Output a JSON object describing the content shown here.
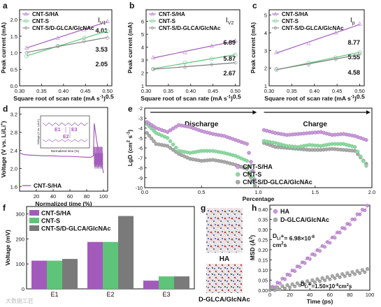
{
  "panels": {
    "a": {
      "label": "a",
      "xlabel": "Square root of scan rate (mA s",
      "xlabel_exp": "-1",
      "xlabel_tail": ")",
      "xlabel_exp2": "0.5",
      "ylabel": "Peak current (mA)",
      "corner_label": "I",
      "corner_sub": "V1",
      "yticks": [
        "0.0",
        "0.5",
        "1.0",
        "1.5",
        "2.0"
      ],
      "xticks": [
        "0.30",
        "0.35",
        "0.40",
        "0.45",
        "0.50"
      ],
      "slopes": [
        "4.01",
        "3.53",
        "2.05"
      ]
    },
    "b": {
      "label": "b",
      "xlabel": "Square root of scan rate (mA s",
      "xlabel_exp": "-1",
      "xlabel_tail": ")",
      "xlabel_exp2": "0.5",
      "ylabel": "Peak current (mA)",
      "corner_label": "I",
      "corner_sub": "V2",
      "yticks": [
        "1",
        "2",
        "3",
        "4",
        "5",
        "6"
      ],
      "xticks": [
        "0.30",
        "0.35",
        "0.40",
        "0.45",
        "0.50"
      ],
      "slopes": [
        "6.89",
        "5.87",
        "2.67"
      ]
    },
    "c": {
      "label": "c",
      "xlabel": "Square root of scan rate (mA s",
      "xlabel_exp": "-1",
      "xlabel_tail": ")",
      "xlabel_exp2": "0.5",
      "ylabel": "Peak current (mA)",
      "corner_label": "I",
      "corner_sub": "p",
      "yticks": [
        "1",
        "2",
        "3",
        "4",
        "5"
      ],
      "xticks": [
        "0.30",
        "0.35",
        "0.40",
        "0.45",
        "0.50"
      ],
      "slopes": [
        "8.77",
        "5.55",
        "4.58"
      ]
    },
    "d": {
      "label": "d",
      "xlabel": "Normalized time (%)",
      "ylabel": "Voltage (V vs. Li/Li",
      "ylabel_sup": "+",
      "ylabel_tail": ")",
      "yticks": [
        "1.6",
        "2.0",
        "2.4",
        "2.8",
        "3.2"
      ],
      "xticks": [
        "20",
        "40",
        "60",
        "80",
        "100"
      ],
      "legend": "CNT-S/HA",
      "inset_ylabel": "Voltage (V vs. Li/Li+)",
      "inset_xlabel": "Normalized time (%)",
      "inset_e1": "E1",
      "inset_e2": "E2",
      "inset_e3": "E3"
    },
    "e": {
      "label": "e",
      "xlabel": "Percentage",
      "ylabel": "LgD (cm",
      "ylabel_sup": "2",
      "ylabel_mid": " s",
      "ylabel_sup2": "-1",
      "ylabel_tail": ")",
      "yticks": [
        "-2",
        "-3",
        "-4",
        "-5",
        "-6",
        "-7",
        "-8",
        "-9",
        "-10"
      ],
      "xticks": [
        "0.0",
        "0.5",
        "1.0",
        "1.5",
        "2.0"
      ],
      "discharge": "Discharge",
      "charge": "Charge"
    },
    "f": {
      "label": "f",
      "ylabel": "Voltage (mV)",
      "yticks": [
        "0",
        "100",
        "200",
        "300"
      ],
      "categories": [
        "E1",
        "E2",
        "E3"
      ]
    },
    "g": {
      "label": "g",
      "caption_top": "HA",
      "caption_bottom": "D-GLCA/GlcNAc"
    },
    "h": {
      "label": "h",
      "xlabel": "Time (ps)",
      "ylabel": "MSD (Å",
      "ylabel_sup": "2",
      "ylabel_tail": ")",
      "yticks": [
        "0.00",
        "0.05",
        "0.10",
        "0.15",
        "0.20",
        "0.25",
        "0.30",
        "0.35",
        "0.40"
      ],
      "xticks": [
        "0",
        "20",
        "40",
        "60",
        "80",
        "100"
      ],
      "anno_ha": "D",
      "anno_ha_sub": "Li",
      "anno_ha_sup": "+",
      "anno_ha_val": "= 6.98×10",
      "anno_ha_exp": "-8",
      "anno_ha_unit": "cm",
      "anno_ha_unit2": "s",
      "anno_dg_val": "=1.50×10",
      "anno_dg_exp": "-8",
      "anno_dg_unit": "cm"
    }
  },
  "legend_abc": [
    "CNT-S/HA",
    "CNT-S",
    "CNT-S/D-GLCA/GlcNAc"
  ],
  "legend_h": [
    "HA",
    "D-GLCA/GlcNAc"
  ],
  "watermark": "大数据工匠",
  "colors": {
    "ha": "#a25bbb",
    "cnts": "#5ec47a",
    "dglca": "#7a7a7a",
    "ha_marker": "#c79bd6",
    "cnts_marker": "#8fd6a0",
    "dglca_marker": "#a9a9a9"
  },
  "chart_data": [
    {
      "id": "a",
      "type": "scatter",
      "title": "",
      "xlabel": "Square root of scan rate (mA s-1)0.5",
      "ylabel": "Peak current (mA)",
      "xlim": [
        0.3,
        0.51
      ],
      "ylim": [
        0.0,
        2.3
      ],
      "x": [
        0.316,
        0.387,
        0.447,
        0.5
      ],
      "series": [
        {
          "name": "CNT-S/HA",
          "values": [
            1.15,
            1.45,
            1.7,
            1.95
          ],
          "slope": "4.01"
        },
        {
          "name": "CNT-S",
          "values": [
            0.9,
            1.2,
            1.45,
            1.65
          ],
          "slope": "3.53"
        },
        {
          "name": "CNT-S/D-GLCA/GlcNAc",
          "values": [
            1.0,
            1.2,
            1.35,
            1.45
          ],
          "slope": "2.05"
        }
      ]
    },
    {
      "id": "b",
      "type": "scatter",
      "title": "",
      "xlabel": "Square root of scan rate (mA s-1)0.5",
      "ylabel": "Peak current (mA)",
      "xlim": [
        0.3,
        0.51
      ],
      "ylim": [
        1.0,
        6.9
      ],
      "x": [
        0.316,
        0.387,
        0.447,
        0.5
      ],
      "series": [
        {
          "name": "CNT-S/HA",
          "values": [
            3.2,
            3.6,
            4.1,
            4.5
          ],
          "slope": "6.89"
        },
        {
          "name": "CNT-S",
          "values": [
            2.3,
            2.8,
            3.1,
            3.4
          ],
          "slope": "5.87"
        },
        {
          "name": "CNT-S/D-GLCA/GlcNAc",
          "values": [
            2.3,
            2.45,
            2.65,
            2.8
          ],
          "slope": "2.67"
        }
      ]
    },
    {
      "id": "c",
      "type": "scatter",
      "title": "",
      "xlabel": "Square root of scan rate (mA s-1)0.5",
      "ylabel": "Peak current (mA)",
      "xlim": [
        0.3,
        0.51
      ],
      "ylim": [
        1.0,
        5.3
      ],
      "x": [
        0.316,
        0.387,
        0.447,
        0.5
      ],
      "series": [
        {
          "name": "CNT-S/HA",
          "values": [
            2.9,
            3.4,
            4.0,
            4.5
          ],
          "slope": "8.77"
        },
        {
          "name": "CNT-S",
          "values": [
            1.9,
            2.3,
            2.6,
            2.9
          ],
          "slope": "5.55"
        },
        {
          "name": "CNT-S/D-GLCA/GlcNAc",
          "values": [
            1.95,
            2.2,
            2.5,
            2.8
          ],
          "slope": "4.58"
        }
      ]
    },
    {
      "id": "d",
      "type": "line",
      "title": "",
      "xlabel": "Normalized time (%)",
      "ylabel": "Voltage (V vs. Li/Li+)",
      "xlim": [
        0,
        105
      ],
      "ylim": [
        1.5,
        3.35
      ],
      "series": [
        {
          "name": "CNT-S/HA",
          "x": [
            0,
            2,
            5,
            10,
            20,
            30,
            40,
            50,
            60,
            70,
            80,
            85,
            88,
            89,
            92,
            95,
            98,
            100
          ],
          "values": [
            2.35,
            2.33,
            2.31,
            2.3,
            2.29,
            2.28,
            2.28,
            2.27,
            2.27,
            2.26,
            2.25,
            2.25,
            2.28,
            3.0,
            2.6,
            2.3,
            2.1,
            1.9
          ]
        }
      ]
    },
    {
      "id": "e",
      "type": "scatter",
      "title": "",
      "xlabel": "Percentage",
      "ylabel": "LgD (cm2 s-1)",
      "xlim": [
        0,
        2.0
      ],
      "ylim": [
        -10,
        -2
      ],
      "series": [
        {
          "name": "CNT-S/HA",
          "x": [
            0.02,
            0.1,
            0.2,
            0.3,
            0.4,
            0.5,
            0.6,
            0.7,
            0.8,
            0.9,
            0.97,
            1.05,
            1.15,
            1.25,
            1.35,
            1.45,
            1.55,
            1.65,
            1.75,
            1.85,
            1.95
          ],
          "values": [
            -3.4,
            -4.0,
            -4.4,
            -3.7,
            -3.9,
            -4.3,
            -4.6,
            -4.8,
            -5.2,
            -5.6,
            -9.2,
            -4.2,
            -4.5,
            -4.7,
            -4.6,
            -4.5,
            -4.4,
            -4.7,
            -4.6,
            -4.8,
            -5.2
          ]
        },
        {
          "name": "CNT-S",
          "x": [
            0.02,
            0.1,
            0.2,
            0.3,
            0.4,
            0.5,
            0.6,
            0.7,
            0.8,
            0.9,
            0.97,
            1.05,
            1.15,
            1.25,
            1.35,
            1.45,
            1.55,
            1.65,
            1.75,
            1.85,
            1.95
          ],
          "values": [
            -3.6,
            -4.5,
            -5.0,
            -6.3,
            -6.5,
            -6.3,
            -6.3,
            -6.5,
            -6.8,
            -7.3,
            -9.5,
            -5.3,
            -5.5,
            -5.8,
            -5.9,
            -5.7,
            -5.8,
            -5.6,
            -5.6,
            -5.9,
            -7.8
          ]
        },
        {
          "name": "CNT-S/D-GLCA/GlcNAc",
          "x": [
            0.02,
            0.1,
            0.2,
            0.3,
            0.4,
            0.5,
            0.6,
            0.7,
            0.8,
            0.9,
            0.97,
            1.05,
            1.15,
            1.25,
            1.35,
            1.45,
            1.55,
            1.65,
            1.75,
            1.85,
            1.95
          ],
          "values": [
            -4.5,
            -5.6,
            -5.8,
            -6.6,
            -7.1,
            -7.3,
            -7.2,
            -7.4,
            -7.7,
            -8.1,
            -9.8,
            -5.5,
            -5.9,
            -6.0,
            -6.1,
            -6.2,
            -6.2,
            -6.1,
            -6.2,
            -6.3,
            -7.6
          ]
        }
      ]
    },
    {
      "id": "f",
      "type": "bar",
      "title": "",
      "xlabel": "",
      "ylabel": "Voltage (mV)",
      "ylim": [
        0,
        330
      ],
      "categories": [
        "E1",
        "E2",
        "E3"
      ],
      "series": [
        {
          "name": "CNT-S/HA",
          "values": [
            113,
            188,
            33
          ]
        },
        {
          "name": "CNT-S",
          "values": [
            113,
            188,
            50
          ]
        },
        {
          "name": "CNT-S/D-GLCA/GlcNAc",
          "values": [
            120,
            292,
            50
          ]
        }
      ]
    },
    {
      "id": "h",
      "type": "scatter",
      "title": "",
      "xlabel": "Time (ps)",
      "ylabel": "MSD (Å2)",
      "xlim": [
        0,
        100
      ],
      "ylim": [
        0,
        0.42
      ],
      "series": [
        {
          "name": "HA",
          "x": [
            0,
            10,
            20,
            30,
            40,
            50,
            60,
            70,
            80,
            90,
            100
          ],
          "values": [
            0.0,
            0.04,
            0.08,
            0.12,
            0.16,
            0.2,
            0.24,
            0.29,
            0.33,
            0.38,
            0.42
          ]
        },
        {
          "name": "D-GLCA/GlcNAc",
          "x": [
            0,
            10,
            20,
            30,
            40,
            50,
            60,
            70,
            80,
            90,
            100
          ],
          "values": [
            0.0,
            0.01,
            0.02,
            0.03,
            0.04,
            0.05,
            0.06,
            0.07,
            0.08,
            0.09,
            0.1
          ]
        }
      ]
    }
  ]
}
